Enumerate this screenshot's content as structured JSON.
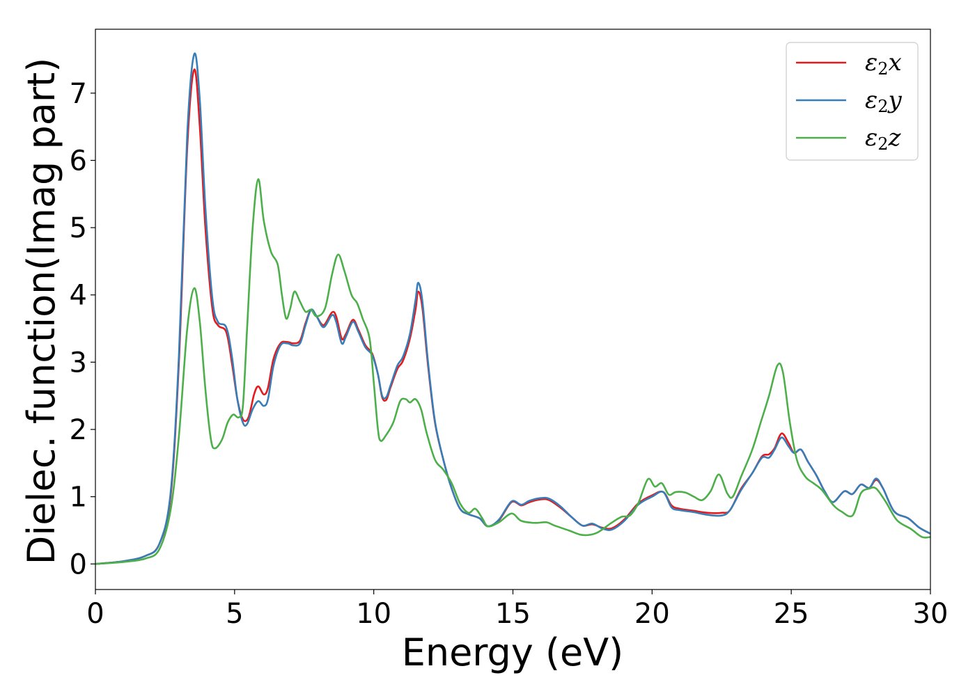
{
  "chart_data": {
    "type": "line",
    "xlabel": "Energy (eV)",
    "ylabel": "Dielec. function(Imag part)",
    "xlim": [
      0,
      30
    ],
    "ylim": [
      -0.38,
      7.95
    ],
    "xticks": [
      0,
      5,
      10,
      15,
      20,
      25,
      30
    ],
    "yticks": [
      0,
      1,
      2,
      3,
      4,
      5,
      6,
      7
    ],
    "grid": false,
    "legend_position": "top-right",
    "series": [
      {
        "name": "ε2x",
        "legend": {
          "base": "ε",
          "sub": "2",
          "tail": "x"
        },
        "color": "#e41a1c",
        "points": [
          [
            0,
            0
          ],
          [
            1,
            0.04
          ],
          [
            1.8,
            0.12
          ],
          [
            2.3,
            0.3
          ],
          [
            2.7,
            1.0
          ],
          [
            3.0,
            3.0
          ],
          [
            3.3,
            6.2
          ],
          [
            3.55,
            7.35
          ],
          [
            3.75,
            6.5
          ],
          [
            3.95,
            5.0
          ],
          [
            4.2,
            3.8
          ],
          [
            4.4,
            3.55
          ],
          [
            4.7,
            3.45
          ],
          [
            4.9,
            3.0
          ],
          [
            5.1,
            2.45
          ],
          [
            5.3,
            2.15
          ],
          [
            5.5,
            2.18
          ],
          [
            5.7,
            2.52
          ],
          [
            5.85,
            2.64
          ],
          [
            6.05,
            2.52
          ],
          [
            6.2,
            2.62
          ],
          [
            6.4,
            3.05
          ],
          [
            6.65,
            3.28
          ],
          [
            6.9,
            3.3
          ],
          [
            7.1,
            3.28
          ],
          [
            7.35,
            3.32
          ],
          [
            7.55,
            3.58
          ],
          [
            7.75,
            3.78
          ],
          [
            7.95,
            3.68
          ],
          [
            8.2,
            3.55
          ],
          [
            8.5,
            3.74
          ],
          [
            8.65,
            3.68
          ],
          [
            8.85,
            3.35
          ],
          [
            9.0,
            3.42
          ],
          [
            9.25,
            3.63
          ],
          [
            9.45,
            3.48
          ],
          [
            9.7,
            3.25
          ],
          [
            9.95,
            3.12
          ],
          [
            10.15,
            2.82
          ],
          [
            10.3,
            2.48
          ],
          [
            10.45,
            2.44
          ],
          [
            10.6,
            2.62
          ],
          [
            10.85,
            2.9
          ],
          [
            11.05,
            3.02
          ],
          [
            11.3,
            3.35
          ],
          [
            11.5,
            3.78
          ],
          [
            11.6,
            4.05
          ],
          [
            11.75,
            3.8
          ],
          [
            11.95,
            2.95
          ],
          [
            12.2,
            2.1
          ],
          [
            12.5,
            1.55
          ],
          [
            12.8,
            1.12
          ],
          [
            13.1,
            0.82
          ],
          [
            13.4,
            0.74
          ],
          [
            13.8,
            0.68
          ],
          [
            14.1,
            0.56
          ],
          [
            14.5,
            0.65
          ],
          [
            14.95,
            0.92
          ],
          [
            15.3,
            0.87
          ],
          [
            15.6,
            0.92
          ],
          [
            16.0,
            0.96
          ],
          [
            16.3,
            0.95
          ],
          [
            16.7,
            0.84
          ],
          [
            17.1,
            0.7
          ],
          [
            17.5,
            0.57
          ],
          [
            17.85,
            0.59
          ],
          [
            18.2,
            0.54
          ],
          [
            18.55,
            0.53
          ],
          [
            19.0,
            0.66
          ],
          [
            19.5,
            0.9
          ],
          [
            20.0,
            1.02
          ],
          [
            20.4,
            1.07
          ],
          [
            20.7,
            0.87
          ],
          [
            21.0,
            0.82
          ],
          [
            21.5,
            0.79
          ],
          [
            22.0,
            0.76
          ],
          [
            22.5,
            0.76
          ],
          [
            22.8,
            0.8
          ],
          [
            23.2,
            1.12
          ],
          [
            23.6,
            1.35
          ],
          [
            23.95,
            1.6
          ],
          [
            24.2,
            1.63
          ],
          [
            24.4,
            1.72
          ],
          [
            24.65,
            1.94
          ],
          [
            24.9,
            1.8
          ],
          [
            25.1,
            1.65
          ],
          [
            25.35,
            1.7
          ],
          [
            25.6,
            1.52
          ],
          [
            25.9,
            1.32
          ],
          [
            26.2,
            1.08
          ],
          [
            26.5,
            0.92
          ],
          [
            26.9,
            1.08
          ],
          [
            27.2,
            1.04
          ],
          [
            27.5,
            1.18
          ],
          [
            27.8,
            1.13
          ],
          [
            28.05,
            1.25
          ],
          [
            28.3,
            1.12
          ],
          [
            28.7,
            0.78
          ],
          [
            29.2,
            0.68
          ],
          [
            29.6,
            0.54
          ],
          [
            30,
            0.45
          ]
        ]
      },
      {
        "name": "ε2y",
        "legend": {
          "base": "ε",
          "sub": "2",
          "tail": "y"
        },
        "color": "#377eb8",
        "points": [
          [
            0,
            0
          ],
          [
            1,
            0.04
          ],
          [
            1.8,
            0.12
          ],
          [
            2.3,
            0.3
          ],
          [
            2.7,
            1.05
          ],
          [
            3.0,
            3.1
          ],
          [
            3.3,
            6.4
          ],
          [
            3.55,
            7.58
          ],
          [
            3.75,
            6.9
          ],
          [
            3.95,
            5.3
          ],
          [
            4.2,
            3.95
          ],
          [
            4.4,
            3.6
          ],
          [
            4.7,
            3.52
          ],
          [
            4.9,
            3.1
          ],
          [
            5.1,
            2.45
          ],
          [
            5.3,
            2.1
          ],
          [
            5.45,
            2.08
          ],
          [
            5.65,
            2.3
          ],
          [
            5.85,
            2.42
          ],
          [
            6.05,
            2.35
          ],
          [
            6.2,
            2.45
          ],
          [
            6.4,
            2.95
          ],
          [
            6.65,
            3.25
          ],
          [
            6.9,
            3.28
          ],
          [
            7.1,
            3.25
          ],
          [
            7.35,
            3.28
          ],
          [
            7.55,
            3.55
          ],
          [
            7.75,
            3.78
          ],
          [
            7.95,
            3.68
          ],
          [
            8.2,
            3.52
          ],
          [
            8.5,
            3.7
          ],
          [
            8.65,
            3.6
          ],
          [
            8.85,
            3.28
          ],
          [
            9.0,
            3.38
          ],
          [
            9.25,
            3.6
          ],
          [
            9.45,
            3.45
          ],
          [
            9.7,
            3.22
          ],
          [
            9.95,
            3.1
          ],
          [
            10.15,
            2.82
          ],
          [
            10.3,
            2.5
          ],
          [
            10.45,
            2.48
          ],
          [
            10.6,
            2.65
          ],
          [
            10.85,
            2.95
          ],
          [
            11.05,
            3.08
          ],
          [
            11.3,
            3.42
          ],
          [
            11.5,
            3.92
          ],
          [
            11.6,
            4.18
          ],
          [
            11.75,
            3.9
          ],
          [
            11.95,
            3.0
          ],
          [
            12.2,
            2.12
          ],
          [
            12.5,
            1.55
          ],
          [
            12.8,
            1.12
          ],
          [
            13.1,
            0.82
          ],
          [
            13.4,
            0.74
          ],
          [
            13.8,
            0.68
          ],
          [
            14.1,
            0.56
          ],
          [
            14.5,
            0.66
          ],
          [
            14.95,
            0.93
          ],
          [
            15.3,
            0.88
          ],
          [
            15.6,
            0.94
          ],
          [
            16.0,
            0.98
          ],
          [
            16.3,
            0.97
          ],
          [
            16.7,
            0.86
          ],
          [
            17.1,
            0.7
          ],
          [
            17.5,
            0.57
          ],
          [
            17.85,
            0.6
          ],
          [
            18.2,
            0.53
          ],
          [
            18.55,
            0.51
          ],
          [
            19.0,
            0.64
          ],
          [
            19.5,
            0.88
          ],
          [
            20.0,
            1.0
          ],
          [
            20.4,
            1.07
          ],
          [
            20.7,
            0.84
          ],
          [
            21.0,
            0.8
          ],
          [
            21.5,
            0.77
          ],
          [
            22.0,
            0.73
          ],
          [
            22.5,
            0.72
          ],
          [
            22.8,
            0.8
          ],
          [
            23.2,
            1.1
          ],
          [
            23.6,
            1.35
          ],
          [
            23.95,
            1.58
          ],
          [
            24.2,
            1.58
          ],
          [
            24.4,
            1.7
          ],
          [
            24.65,
            1.88
          ],
          [
            24.9,
            1.75
          ],
          [
            25.1,
            1.65
          ],
          [
            25.35,
            1.7
          ],
          [
            25.6,
            1.52
          ],
          [
            25.9,
            1.32
          ],
          [
            26.2,
            1.08
          ],
          [
            26.5,
            0.92
          ],
          [
            26.9,
            1.08
          ],
          [
            27.2,
            1.04
          ],
          [
            27.5,
            1.18
          ],
          [
            27.8,
            1.13
          ],
          [
            28.05,
            1.27
          ],
          [
            28.3,
            1.12
          ],
          [
            28.7,
            0.78
          ],
          [
            29.2,
            0.68
          ],
          [
            29.6,
            0.54
          ],
          [
            30,
            0.45
          ]
        ]
      },
      {
        "name": "ε2z",
        "legend": {
          "base": "ε",
          "sub": "2",
          "tail": "z"
        },
        "color": "#4daf4a",
        "points": [
          [
            0,
            0
          ],
          [
            1,
            0.03
          ],
          [
            1.8,
            0.08
          ],
          [
            2.3,
            0.22
          ],
          [
            2.7,
            0.8
          ],
          [
            3.0,
            1.9
          ],
          [
            3.3,
            3.5
          ],
          [
            3.55,
            4.1
          ],
          [
            3.75,
            3.6
          ],
          [
            3.95,
            2.6
          ],
          [
            4.15,
            1.85
          ],
          [
            4.3,
            1.72
          ],
          [
            4.55,
            1.85
          ],
          [
            4.75,
            2.1
          ],
          [
            4.95,
            2.22
          ],
          [
            5.15,
            2.18
          ],
          [
            5.3,
            2.35
          ],
          [
            5.45,
            3.5
          ],
          [
            5.65,
            5.0
          ],
          [
            5.85,
            5.72
          ],
          [
            6.05,
            5.1
          ],
          [
            6.3,
            4.65
          ],
          [
            6.55,
            4.45
          ],
          [
            6.7,
            4.0
          ],
          [
            6.85,
            3.65
          ],
          [
            7.0,
            3.8
          ],
          [
            7.15,
            4.05
          ],
          [
            7.35,
            3.9
          ],
          [
            7.55,
            3.75
          ],
          [
            7.75,
            3.78
          ],
          [
            7.95,
            3.68
          ],
          [
            8.25,
            3.8
          ],
          [
            8.5,
            4.3
          ],
          [
            8.72,
            4.6
          ],
          [
            8.95,
            4.35
          ],
          [
            9.2,
            4.0
          ],
          [
            9.4,
            3.88
          ],
          [
            9.6,
            3.65
          ],
          [
            9.85,
            3.35
          ],
          [
            10.0,
            2.7
          ],
          [
            10.15,
            2.0
          ],
          [
            10.25,
            1.83
          ],
          [
            10.45,
            1.92
          ],
          [
            10.7,
            2.1
          ],
          [
            10.95,
            2.42
          ],
          [
            11.15,
            2.45
          ],
          [
            11.3,
            2.4
          ],
          [
            11.5,
            2.45
          ],
          [
            11.7,
            2.3
          ],
          [
            11.9,
            1.95
          ],
          [
            12.2,
            1.55
          ],
          [
            12.5,
            1.4
          ],
          [
            12.8,
            1.2
          ],
          [
            13.1,
            0.9
          ],
          [
            13.4,
            0.76
          ],
          [
            13.65,
            0.82
          ],
          [
            13.9,
            0.68
          ],
          [
            14.1,
            0.56
          ],
          [
            14.5,
            0.62
          ],
          [
            14.95,
            0.75
          ],
          [
            15.3,
            0.64
          ],
          [
            15.8,
            0.61
          ],
          [
            16.2,
            0.62
          ],
          [
            16.5,
            0.57
          ],
          [
            17.0,
            0.5
          ],
          [
            17.5,
            0.43
          ],
          [
            18.0,
            0.46
          ],
          [
            18.5,
            0.6
          ],
          [
            18.9,
            0.7
          ],
          [
            19.2,
            0.72
          ],
          [
            19.5,
            0.9
          ],
          [
            19.85,
            1.26
          ],
          [
            20.1,
            1.15
          ],
          [
            20.35,
            1.2
          ],
          [
            20.6,
            1.03
          ],
          [
            20.85,
            1.07
          ],
          [
            21.2,
            1.06
          ],
          [
            21.5,
            1.0
          ],
          [
            21.8,
            0.95
          ],
          [
            22.1,
            1.08
          ],
          [
            22.4,
            1.33
          ],
          [
            22.7,
            1.05
          ],
          [
            22.9,
            1.0
          ],
          [
            23.2,
            1.3
          ],
          [
            23.6,
            1.7
          ],
          [
            23.9,
            2.1
          ],
          [
            24.2,
            2.5
          ],
          [
            24.5,
            2.95
          ],
          [
            24.7,
            2.85
          ],
          [
            24.95,
            2.1
          ],
          [
            25.2,
            1.55
          ],
          [
            25.5,
            1.3
          ],
          [
            25.8,
            1.2
          ],
          [
            26.1,
            1.1
          ],
          [
            26.5,
            0.88
          ],
          [
            26.8,
            0.78
          ],
          [
            27.2,
            0.72
          ],
          [
            27.5,
            1.05
          ],
          [
            27.8,
            1.12
          ],
          [
            28.05,
            1.12
          ],
          [
            28.4,
            0.92
          ],
          [
            28.8,
            0.65
          ],
          [
            29.3,
            0.52
          ],
          [
            29.7,
            0.4
          ],
          [
            30,
            0.4
          ]
        ]
      }
    ]
  }
}
